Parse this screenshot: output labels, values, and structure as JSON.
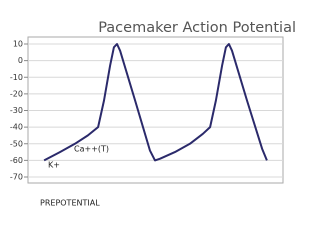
{
  "chart_data": {
    "type": "line",
    "title": "Pacemaker Action Potential",
    "x": [
      6.3,
      12.5,
      18.4,
      23.5,
      27.5,
      29.8,
      32.2,
      33.7,
      34.9,
      36.1,
      42,
      47.8,
      49.8,
      51.8,
      57.6,
      63.5,
      68.6,
      71.4,
      73.7,
      76.1,
      77.6,
      78.8,
      80,
      85.9,
      91.8,
      93.7
    ],
    "series": [
      {
        "color": "#2b2a6b",
        "values": [
          -60,
          -55,
          -50,
          -45,
          -40,
          -24,
          -3,
          8,
          10,
          6,
          -24,
          -54,
          -60,
          -59,
          -55,
          -50,
          -44,
          -40,
          -24,
          -3,
          8,
          10,
          6,
          -24,
          -53,
          -60
        ]
      }
    ],
    "xlim": [
      0,
      100
    ],
    "ylim": [
      -70,
      10
    ],
    "yticks": [
      10,
      0,
      -10,
      -20,
      -30,
      -40,
      -50,
      -60,
      -70
    ],
    "grid": true,
    "annotations": [
      "K+",
      "Ca++(T)",
      "PREPOTENTIAL"
    ]
  }
}
